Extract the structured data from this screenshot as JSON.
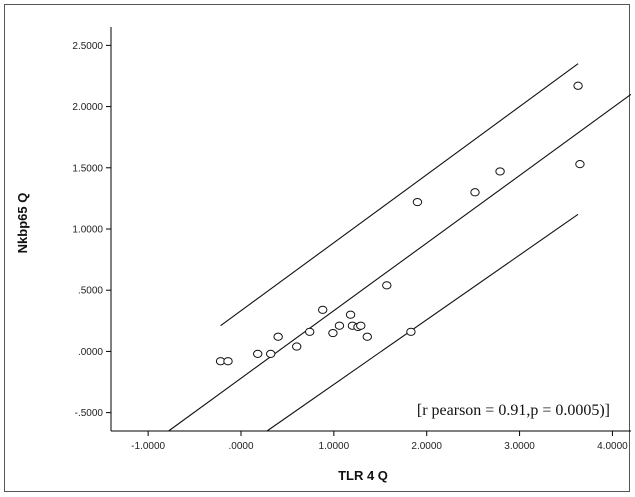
{
  "chart_data": {
    "type": "scatter",
    "xlabel": "TLR 4 Q",
    "ylabel": "Nkbp65 Q",
    "xlim": [
      -1.4,
      4.2
    ],
    "ylim": [
      -0.65,
      2.65
    ],
    "x_ticks": [
      -1,
      0,
      1,
      2,
      3,
      4
    ],
    "x_tick_labels": [
      "-1.0000",
      ".0000",
      "1.0000",
      "2.0000",
      "3.0000",
      "4.0000"
    ],
    "y_ticks": [
      -0.5,
      0,
      0.5,
      1,
      1.5,
      2,
      2.5
    ],
    "y_tick_labels": [
      "-.5000",
      ".0000",
      ".5000",
      "1.0000",
      "1.5000",
      "2.0000",
      "2.5000"
    ],
    "grid": false,
    "annotation": "[r pearson = 0.91,p = 0.0005)]",
    "points": [
      {
        "x": -0.22,
        "y": -0.08
      },
      {
        "x": -0.14,
        "y": -0.08
      },
      {
        "x": 0.18,
        "y": -0.02
      },
      {
        "x": 0.32,
        "y": -0.02
      },
      {
        "x": 0.4,
        "y": 0.12
      },
      {
        "x": 0.6,
        "y": 0.04
      },
      {
        "x": 0.74,
        "y": 0.16
      },
      {
        "x": 0.88,
        "y": 0.34
      },
      {
        "x": 0.99,
        "y": 0.15
      },
      {
        "x": 1.06,
        "y": 0.21
      },
      {
        "x": 1.18,
        "y": 0.3
      },
      {
        "x": 1.2,
        "y": 0.21
      },
      {
        "x": 1.26,
        "y": 0.2
      },
      {
        "x": 1.29,
        "y": 0.21
      },
      {
        "x": 1.36,
        "y": 0.12
      },
      {
        "x": 1.57,
        "y": 0.54
      },
      {
        "x": 1.83,
        "y": 0.16
      },
      {
        "x": 1.9,
        "y": 1.22
      },
      {
        "x": 2.52,
        "y": 1.3
      },
      {
        "x": 2.79,
        "y": 1.47
      },
      {
        "x": 3.63,
        "y": 2.17
      },
      {
        "x": 3.65,
        "y": 1.53
      }
    ],
    "lines": [
      {
        "name": "upper-bound",
        "x1": -0.22,
        "y1": 0.21,
        "x2": 3.63,
        "y2": 2.35
      },
      {
        "name": "fit",
        "x1": -0.78,
        "y1": -0.65,
        "x2": 4.2,
        "y2": 2.1
      },
      {
        "name": "lower-bound",
        "x1": 0.28,
        "y1": -0.65,
        "x2": 3.63,
        "y2": 1.12
      }
    ]
  }
}
